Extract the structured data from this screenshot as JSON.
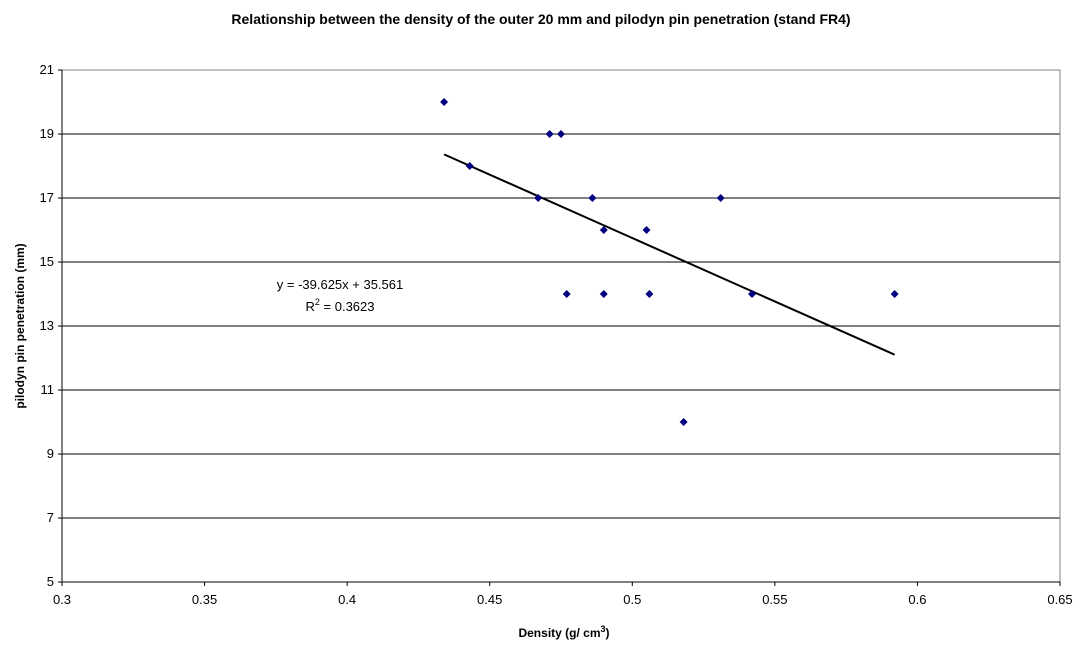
{
  "chart_data": {
    "type": "scatter",
    "title": "Relationship between the density of the outer 20 mm and pilodyn pin penetration (stand FR4)",
    "xlabel_main": "Density (g/ cm",
    "xlabel_sup": "3",
    "xlabel_end": ")",
    "ylabel": "pilodyn pin penetration (mm)",
    "xlim": [
      0.3,
      0.65
    ],
    "ylim": [
      5,
      21
    ],
    "x_ticks": [
      0.3,
      0.35,
      0.4,
      0.45,
      0.5,
      0.55,
      0.6,
      0.65
    ],
    "x_tick_labels": [
      "0.3",
      "0.35",
      "0.4",
      "0.45",
      "0.5",
      "0.55",
      "0.6",
      "0.65"
    ],
    "y_ticks": [
      5,
      7,
      9,
      11,
      13,
      15,
      17,
      19,
      21
    ],
    "y_tick_labels": [
      "5",
      "7",
      "9",
      "11",
      "13",
      "15",
      "17",
      "19",
      "21"
    ],
    "grid": "horizontal",
    "marker_color": "#000080",
    "trend_color": "#000000",
    "points": [
      {
        "x": 0.434,
        "y": 20
      },
      {
        "x": 0.443,
        "y": 18
      },
      {
        "x": 0.467,
        "y": 17
      },
      {
        "x": 0.471,
        "y": 19
      },
      {
        "x": 0.475,
        "y": 19
      },
      {
        "x": 0.477,
        "y": 14
      },
      {
        "x": 0.486,
        "y": 17
      },
      {
        "x": 0.49,
        "y": 16
      },
      {
        "x": 0.49,
        "y": 14
      },
      {
        "x": 0.505,
        "y": 16
      },
      {
        "x": 0.506,
        "y": 14
      },
      {
        "x": 0.518,
        "y": 10
      },
      {
        "x": 0.531,
        "y": 17
      },
      {
        "x": 0.542,
        "y": 14
      },
      {
        "x": 0.592,
        "y": 14
      }
    ],
    "trendline": {
      "slope": -39.625,
      "intercept": 35.561,
      "x_start": 0.434,
      "x_end": 0.592,
      "equation_label": "y = -39.625x + 35.561",
      "r2_prefix": "R",
      "r2_sup": "2",
      "r2_value": " = 0.3623"
    }
  }
}
